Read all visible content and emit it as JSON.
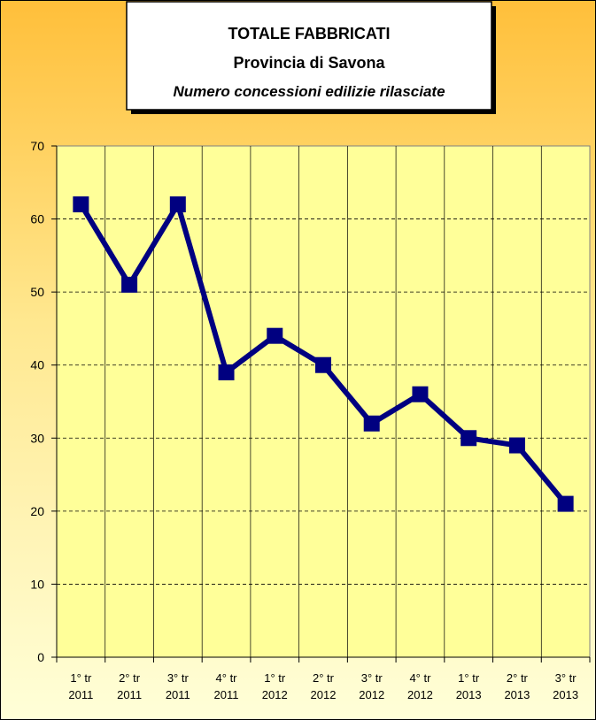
{
  "chart_data": {
    "type": "line",
    "title": "TOTALE FABBRICATI",
    "subtitle": "Provincia di Savona",
    "description": "Numero concessioni edilizie rilasciate",
    "categories": [
      "1° tr\n2011",
      "2° tr\n2011",
      "3° tr\n2011",
      "4° tr\n2011",
      "1° tr\n2012",
      "2° tr\n2012",
      "3° tr\n2012",
      "4° tr\n2012",
      "1° tr\n2013",
      "2° tr\n2013",
      "3° tr\n2013"
    ],
    "values": [
      62,
      51,
      62,
      39,
      44,
      40,
      32,
      36,
      30,
      29,
      21
    ],
    "color": "#000080",
    "ylim": [
      0,
      70
    ],
    "yticks": [
      0,
      10,
      20,
      30,
      40,
      50,
      60,
      70
    ],
    "grid": true
  }
}
